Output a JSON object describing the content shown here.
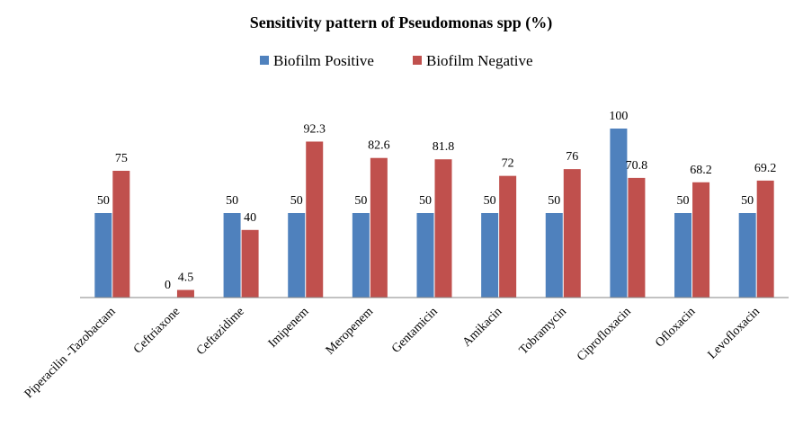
{
  "chart_data": {
    "type": "bar",
    "title": "Sensitivity pattern of Pseudomonas spp (%)",
    "xlabel": "",
    "ylabel": "",
    "ylim": [
      0,
      100
    ],
    "grid": false,
    "legend_position": "top",
    "categories": [
      "Piperacilin -Tazobactam",
      "Ceftriaxone",
      "Ceftazidime",
      "Imipenem",
      "Meropenem",
      "Gentamicin",
      "Amikacin",
      "Tobramycin",
      "Ciprofloxacin",
      "Ofloxacin",
      "Levofloxacin"
    ],
    "series": [
      {
        "name": "Biofilm Positive",
        "color": "#4F81BD",
        "values": [
          50,
          0,
          50,
          50,
          50,
          50,
          50,
          50,
          100,
          50,
          50
        ],
        "labels": [
          "50",
          "0",
          "50",
          "50",
          "50",
          "50",
          "50",
          "50",
          "100",
          "50",
          "50"
        ]
      },
      {
        "name": "Biofilm Negative",
        "color": "#C0504D",
        "values": [
          75,
          4.5,
          40,
          92.3,
          82.6,
          81.8,
          72,
          76,
          70.8,
          68.2,
          69.2
        ],
        "labels": [
          "75",
          "4.5",
          "40",
          "92.3",
          "82.6",
          "81.8",
          "72",
          "76",
          "70.8",
          "68.2",
          "69.2"
        ]
      }
    ]
  }
}
